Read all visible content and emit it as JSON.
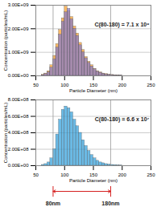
{
  "chart_data": [
    {
      "type": "histogram",
      "xlabel": "Particle Diameter (nm)",
      "ylabel": "Concentration (particles/mL)",
      "annotation": "C(80-180) = 7.1 x 10⁹",
      "bins": [
        60,
        65,
        70,
        75,
        80,
        85,
        90,
        95,
        100,
        105,
        110,
        115,
        120,
        125,
        130,
        135,
        140,
        145,
        150,
        155,
        160,
        165,
        170,
        175,
        180,
        185,
        190,
        195,
        200
      ],
      "series": [
        {
          "color": "#f5a033",
          "values": [
            50000000,
            100000000,
            200000000,
            450000000,
            850000000,
            1350000000,
            1950000000,
            2450000000,
            2950000000,
            2750000000,
            2500000000,
            2100000000,
            1800000000,
            1400000000,
            1100000000,
            800000000,
            600000000,
            450000000,
            300000000,
            200000000,
            150000000,
            100000000,
            80000000,
            50000000,
            40000000,
            30000000,
            20000000,
            10000000
          ]
        },
        {
          "color": "#8a7cc4",
          "values": [
            30000000,
            80000000,
            150000000,
            350000000,
            700000000,
            1200000000,
            1750000000,
            2300000000,
            2700000000,
            2850000000,
            2400000000,
            2000000000,
            1700000000,
            1300000000,
            1000000000,
            750000000,
            550000000,
            400000000,
            280000000,
            180000000,
            130000000,
            90000000,
            60000000,
            40000000,
            30000000,
            20000000,
            10000000,
            10000000
          ]
        }
      ],
      "vlines": [
        80,
        180
      ],
      "xlim": [
        50,
        250
      ],
      "xticks": [
        50,
        100,
        150,
        200,
        250
      ],
      "ylim": [
        0,
        3000000000
      ],
      "yticks": [
        {
          "value": 0,
          "label": "0.00E+00"
        },
        {
          "value": 1000000000,
          "label": "1.00E+09"
        },
        {
          "value": 2000000000,
          "label": "2.00E+09"
        },
        {
          "value": 3000000000,
          "label": "3.00E+09"
        }
      ],
      "grid": true
    },
    {
      "type": "histogram",
      "xlabel": "Particle Diameter (nm)",
      "ylabel": "Concentration (particles/mL)",
      "annotation": "C(80-180) = 6.6 x 10⁷",
      "bins": [
        60,
        65,
        70,
        75,
        80,
        85,
        90,
        95,
        100,
        105,
        110,
        115,
        120,
        125,
        130,
        135,
        140,
        145,
        150,
        155,
        160,
        165,
        170,
        175,
        180,
        185,
        190,
        195,
        200
      ],
      "series": [
        {
          "color": "#3aa3dc",
          "values": [
            10000000,
            20000000,
            40000000,
            90000000,
            200000000,
            380000000,
            560000000,
            680000000,
            720000000,
            700000000,
            650000000,
            560000000,
            480000000,
            400000000,
            310000000,
            240000000,
            180000000,
            130000000,
            90000000,
            60000000,
            40000000,
            30000000,
            20000000,
            15000000,
            10000000,
            8000000,
            5000000,
            3000000
          ]
        }
      ],
      "vlines": [
        80,
        180
      ],
      "range_marker": {
        "x": [
          80,
          180
        ],
        "labels": [
          "80nm",
          "180nm"
        ],
        "color": "#d62020"
      },
      "xlim": [
        50,
        250
      ],
      "xticks": [
        50,
        100,
        150,
        200,
        250
      ],
      "ylim": [
        0,
        800000000
      ],
      "yticks": [
        {
          "value": 0,
          "label": "0.00E+00"
        },
        {
          "value": 200000000,
          "label": "2.00E+08"
        },
        {
          "value": 400000000,
          "label": "4.00E+08"
        },
        {
          "value": 600000000,
          "label": "6.00E+08"
        },
        {
          "value": 800000000,
          "label": "8.00E+08"
        }
      ],
      "grid": true
    }
  ]
}
